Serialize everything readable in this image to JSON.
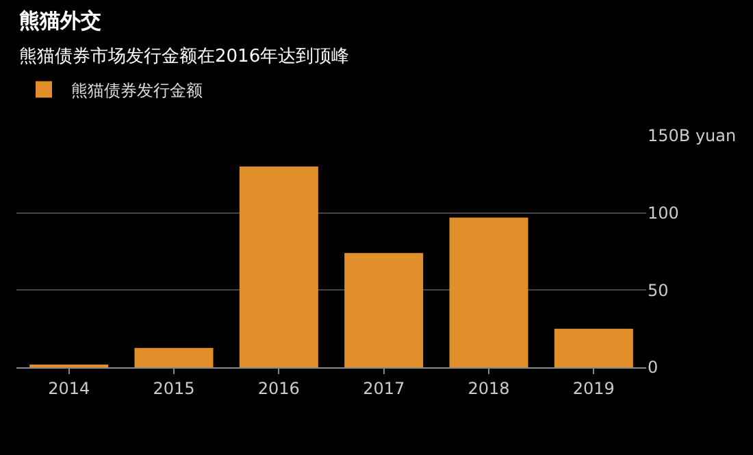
{
  "chart_data": {
    "type": "bar",
    "title": "熊猫外交",
    "subtitle": "熊猫债券市场发行金额在2016年达到顶峰",
    "categories": [
      "2014",
      "2015",
      "2016",
      "2017",
      "2018",
      "2019"
    ],
    "series": [
      {
        "name": "熊猫债券发行金额",
        "color": "#e08f2a",
        "values": [
          1.5,
          12.5,
          130,
          74,
          97,
          25
        ]
      }
    ],
    "ylim": [
      0,
      150
    ],
    "yticks": [
      0,
      50,
      100,
      {
        "value": 150,
        "label": "150B yuan"
      }
    ],
    "grid": "y",
    "legend": "top left"
  }
}
